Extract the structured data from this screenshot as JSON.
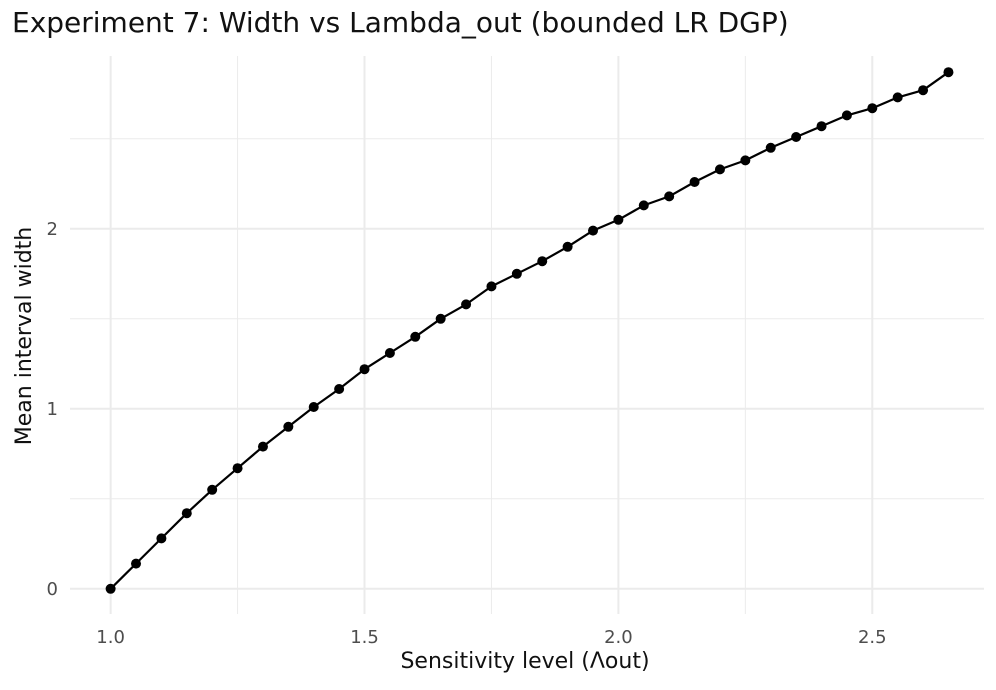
{
  "colors": {
    "background": "#ffffff",
    "grid": "#ebebeb",
    "series": "#000000",
    "tick_text": "#4d4d4d",
    "title_text": "#111111"
  },
  "chart_data": {
    "type": "line",
    "title": "Experiment 7: Width vs Lambda_out (bounded LR DGP)",
    "xlabel": "Sensitivity level (Λout)",
    "ylabel": "Mean interval width",
    "xlim": [
      0.92,
      2.72
    ],
    "ylim": [
      -0.14,
      2.96
    ],
    "x_ticks": [
      1.0,
      1.5,
      2.0,
      2.5
    ],
    "x_tick_labels": [
      "1.0",
      "1.5",
      "2.0",
      "2.5"
    ],
    "y_ticks": [
      0,
      1,
      2
    ],
    "y_tick_labels": [
      "0",
      "1",
      "2"
    ],
    "grid": true,
    "legend": "none",
    "markers": true,
    "series": [
      {
        "x": [
          1.0,
          1.05,
          1.1,
          1.15,
          1.2,
          1.25,
          1.3,
          1.35,
          1.4,
          1.45,
          1.5,
          1.55,
          1.6,
          1.65,
          1.7,
          1.75,
          1.8,
          1.85,
          1.9,
          1.95,
          2.0,
          2.05,
          2.1,
          2.15,
          2.2,
          2.25,
          2.3,
          2.35,
          2.4,
          2.45,
          2.5,
          2.55,
          2.6,
          2.65
        ],
        "values": [
          0.0,
          0.14,
          0.28,
          0.42,
          0.55,
          0.67,
          0.79,
          0.9,
          1.01,
          1.11,
          1.22,
          1.31,
          1.4,
          1.5,
          1.58,
          1.68,
          1.75,
          1.82,
          1.9,
          1.99,
          2.05,
          2.13,
          2.18,
          2.26,
          2.33,
          2.38,
          2.45,
          2.51,
          2.57,
          2.63,
          2.67,
          2.73,
          2.77,
          2.87
        ]
      }
    ]
  }
}
